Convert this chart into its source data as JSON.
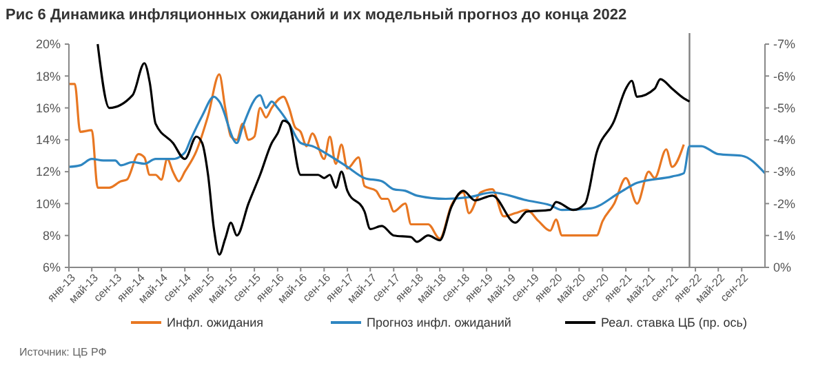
{
  "chart_data": {
    "type": "line",
    "title": "Рис 6   Динамика инфляционных ожиданий и их модельный прогноз до конца 2022",
    "annotations": [
      "Источник: ЦБ РФ"
    ],
    "xlim": [
      "2013-01",
      "2023-01"
    ],
    "xticks": [
      {
        "value": "2013-01",
        "label": "янв-13"
      },
      {
        "value": "2013-05",
        "label": "май-13"
      },
      {
        "value": "2013-09",
        "label": "сен-13"
      },
      {
        "value": "2014-01",
        "label": "янв-14"
      },
      {
        "value": "2014-05",
        "label": "май-14"
      },
      {
        "value": "2014-09",
        "label": "сен-14"
      },
      {
        "value": "2015-01",
        "label": "янв-15"
      },
      {
        "value": "2015-05",
        "label": "май-15"
      },
      {
        "value": "2015-09",
        "label": "сен-15"
      },
      {
        "value": "2016-01",
        "label": "янв-16"
      },
      {
        "value": "2016-05",
        "label": "май-16"
      },
      {
        "value": "2016-09",
        "label": "сен-16"
      },
      {
        "value": "2017-01",
        "label": "янв-17"
      },
      {
        "value": "2017-05",
        "label": "май-17"
      },
      {
        "value": "2017-09",
        "label": "сен-17"
      },
      {
        "value": "2018-01",
        "label": "янв-18"
      },
      {
        "value": "2018-05",
        "label": "май-18"
      },
      {
        "value": "2018-09",
        "label": "сен-18"
      },
      {
        "value": "2019-01",
        "label": "янв-19"
      },
      {
        "value": "2019-05",
        "label": "май-19"
      },
      {
        "value": "2019-09",
        "label": "сен-19"
      },
      {
        "value": "2020-01",
        "label": "янв-20"
      },
      {
        "value": "2020-05",
        "label": "май-20"
      },
      {
        "value": "2020-09",
        "label": "сен-20"
      },
      {
        "value": "2021-01",
        "label": "янв-21"
      },
      {
        "value": "2021-05",
        "label": "май-21"
      },
      {
        "value": "2021-09",
        "label": "сен-21"
      },
      {
        "value": "2022-01",
        "label": "янв-22"
      },
      {
        "value": "2022-05",
        "label": "май-22"
      },
      {
        "value": "2022-09",
        "label": "сен-22"
      }
    ],
    "ylim": [
      6,
      20
    ],
    "yticks": [
      {
        "value": 6,
        "label": "6%"
      },
      {
        "value": 8,
        "label": "8%"
      },
      {
        "value": 10,
        "label": "10%"
      },
      {
        "value": 12,
        "label": "12%"
      },
      {
        "value": 14,
        "label": "14%"
      },
      {
        "value": 16,
        "label": "16%"
      },
      {
        "value": 18,
        "label": "18%"
      },
      {
        "value": 20,
        "label": "20%"
      }
    ],
    "y2lim": [
      0,
      -7
    ],
    "y2ticks": [
      {
        "value": 0,
        "label": "0%"
      },
      {
        "value": -1,
        "label": "-1%"
      },
      {
        "value": -2,
        "label": "-2%"
      },
      {
        "value": -3,
        "label": "-3%"
      },
      {
        "value": -4,
        "label": "-4%"
      },
      {
        "value": -5,
        "label": "-5%"
      },
      {
        "value": -6,
        "label": "-6%"
      },
      {
        "value": -7,
        "label": "-7%"
      }
    ],
    "grid": false,
    "legend": "bottom",
    "ref_lines": [
      {
        "axis": "x",
        "value": "2021-12",
        "color": "#808080"
      }
    ],
    "series": [
      {
        "name": "Инфл. ожидания",
        "color": "#e87722",
        "x": [
          "2013-01",
          "2013-02",
          "2013-03",
          "2013-05",
          "2013-06",
          "2013-08",
          "2013-10",
          "2013-11",
          "2014-01",
          "2014-02",
          "2014-03",
          "2014-04",
          "2014-05",
          "2014-06",
          "2014-07",
          "2014-08",
          "2014-09",
          "2014-11",
          "2015-01",
          "2015-03",
          "2015-04",
          "2015-05",
          "2015-06",
          "2015-07",
          "2015-08",
          "2015-09",
          "2015-10",
          "2015-11",
          "2015-12",
          "2016-02",
          "2016-03",
          "2016-04",
          "2016-05",
          "2016-06",
          "2016-07",
          "2016-09",
          "2016-10",
          "2016-11",
          "2016-12",
          "2017-01",
          "2017-03",
          "2017-04",
          "2017-06",
          "2017-07",
          "2017-08",
          "2017-09",
          "2017-11",
          "2017-12",
          "2018-01",
          "2018-03",
          "2018-05",
          "2018-07",
          "2018-09",
          "2018-10",
          "2018-12",
          "2019-02",
          "2019-04",
          "2019-06",
          "2019-08",
          "2019-10",
          "2019-12",
          "2020-01",
          "2020-02",
          "2020-08",
          "2020-09",
          "2020-11",
          "2021-01",
          "2021-03",
          "2021-05",
          "2021-06",
          "2021-08",
          "2021-09",
          "2021-11"
        ],
        "values": [
          17.5,
          17.5,
          14.5,
          14.6,
          11.0,
          11.0,
          11.4,
          11.5,
          13.1,
          12.9,
          11.8,
          11.8,
          11.5,
          12.8,
          12.0,
          11.4,
          12.0,
          13.3,
          15.5,
          18.1,
          16.0,
          14.2,
          14.0,
          15.0,
          14.0,
          14.2,
          16.0,
          15.4,
          16.0,
          16.7,
          16.0,
          14.8,
          14.5,
          13.6,
          14.4,
          12.8,
          14.2,
          12.5,
          13.7,
          12.2,
          12.9,
          11.1,
          10.8,
          10.3,
          10.3,
          9.5,
          10.0,
          8.7,
          8.7,
          8.7,
          7.8,
          9.9,
          10.7,
          9.4,
          10.7,
          10.9,
          9.2,
          9.4,
          9.6,
          8.9,
          8.3,
          9.0,
          8.0,
          8.0,
          8.9,
          10.0,
          11.6,
          10.0,
          12.0,
          11.6,
          13.4,
          12.3,
          13.7
        ]
      },
      {
        "name": "Прогноз инфл. ожиданий",
        "color": "#2e86c1",
        "x": [
          "2013-01",
          "2013-03",
          "2013-05",
          "2013-07",
          "2013-09",
          "2013-10",
          "2013-12",
          "2014-02",
          "2014-04",
          "2014-07",
          "2014-09",
          "2014-10",
          "2014-12",
          "2015-02",
          "2015-03",
          "2015-06",
          "2015-07",
          "2015-10",
          "2015-11",
          "2015-12",
          "2016-01",
          "2016-03",
          "2016-05",
          "2016-07",
          "2016-10",
          "2017-01",
          "2017-04",
          "2017-07",
          "2017-09",
          "2017-11",
          "2018-01",
          "2018-06",
          "2018-10",
          "2019-02",
          "2019-08",
          "2019-12",
          "2020-02",
          "2020-07",
          "2020-12",
          "2021-03",
          "2021-09",
          "2021-11",
          "2021-12",
          "2022-02",
          "2022-05",
          "2022-09",
          "2023-01"
        ],
        "values": [
          12.3,
          12.4,
          12.8,
          12.7,
          12.7,
          12.4,
          12.6,
          12.5,
          12.8,
          12.8,
          13.2,
          14.0,
          15.5,
          16.7,
          16.4,
          13.8,
          14.8,
          16.8,
          16.0,
          16.4,
          16.0,
          15.0,
          13.8,
          13.6,
          13.0,
          12.3,
          11.6,
          11.4,
          10.9,
          10.8,
          10.5,
          10.3,
          10.4,
          10.7,
          10.2,
          9.9,
          9.6,
          9.7,
          10.7,
          11.3,
          11.7,
          11.9,
          13.6,
          13.6,
          13.1,
          13.0,
          11.9
        ]
      },
      {
        "name": "Реал. ставка ЦБ (пр. ось)",
        "color": "#000000",
        "axis": "y2",
        "x": [
          "2013-06",
          "2013-08",
          "2013-12",
          "2014-02",
          "2014-03",
          "2014-04",
          "2014-07",
          "2014-09",
          "2014-11",
          "2014-12",
          "2015-01",
          "2015-02",
          "2015-03",
          "2015-04",
          "2015-05",
          "2015-06",
          "2015-08",
          "2015-10",
          "2015-12",
          "2016-01",
          "2016-02",
          "2016-03",
          "2016-05",
          "2016-08",
          "2016-09",
          "2016-10",
          "2016-11",
          "2016-12",
          "2017-01",
          "2017-04",
          "2017-05",
          "2017-07",
          "2017-09",
          "2017-12",
          "2018-01",
          "2018-03",
          "2018-05",
          "2018-07",
          "2018-09",
          "2018-11",
          "2019-02",
          "2019-06",
          "2019-08",
          "2019-12",
          "2020-01",
          "2020-04",
          "2020-06",
          "2020-08",
          "2020-11",
          "2021-01",
          "2021-02",
          "2021-03",
          "2021-06",
          "2021-07",
          "2021-09",
          "2021-11",
          "2021-12"
        ],
        "values": [
          -7.0,
          -5.0,
          -5.4,
          -6.4,
          -5.8,
          -4.5,
          -3.9,
          -3.4,
          -4.1,
          -3.9,
          -2.9,
          -1.2,
          -0.4,
          -0.9,
          -1.4,
          -1.0,
          -2.0,
          -2.9,
          -3.9,
          -4.2,
          -4.6,
          -4.5,
          -2.9,
          -2.9,
          -2.8,
          -2.9,
          -2.5,
          -3.0,
          -2.4,
          -1.75,
          -1.2,
          -1.3,
          -1.0,
          -0.95,
          -0.8,
          -1.0,
          -0.85,
          -1.9,
          -2.4,
          -2.1,
          -2.25,
          -1.4,
          -1.75,
          -1.8,
          -2.05,
          -1.8,
          -2.0,
          -3.6,
          -4.6,
          -5.6,
          -5.85,
          -5.35,
          -5.6,
          -5.9,
          -5.6,
          -5.3,
          -5.2
        ]
      }
    ]
  }
}
